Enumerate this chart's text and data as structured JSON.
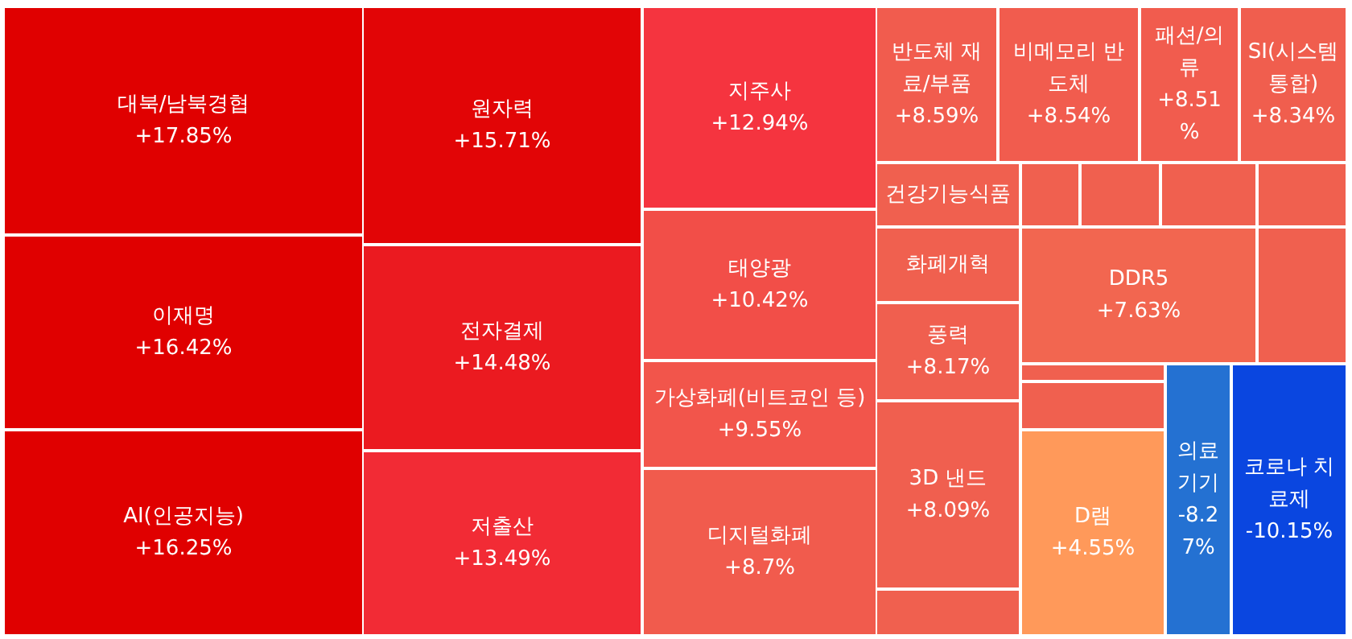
{
  "chart_data": {
    "type": "other",
    "categories": [
      "대북/남북경협",
      "이재명",
      "AI(인공지능)",
      "원자력",
      "전자결제",
      "저출산",
      "지주사",
      "태양광",
      "가상화폐(비트코인 등)",
      "디지털화폐",
      "반도체 재료/부품",
      "비메모리 반도체",
      "패션/의류",
      "SI(시스템통합)",
      "건강기능식품",
      null,
      null,
      null,
      null,
      "화폐개혁",
      "풍력",
      "DDR5",
      null,
      null,
      null,
      "3D 낸드",
      null,
      "D램",
      "의료기기",
      "코로나 치료제"
    ],
    "values": [
      17.85,
      16.42,
      16.25,
      15.71,
      14.48,
      13.49,
      12.94,
      10.42,
      9.55,
      8.7,
      8.59,
      8.54,
      8.51,
      8.34,
      null,
      null,
      null,
      null,
      null,
      null,
      8.17,
      7.63,
      null,
      null,
      null,
      8.09,
      null,
      4.55,
      -8.27,
      -10.15
    ],
    "value_labels": [
      "+17.85%",
      "+16.42%",
      "+16.25%",
      "+15.71%",
      "+14.48%",
      "+13.49%",
      "+12.94%",
      "+10.42%",
      "+9.55%",
      "+8.7%",
      "+8.59%",
      "+8.54%",
      "+8.51%",
      "+8.34%",
      null,
      null,
      null,
      null,
      null,
      null,
      "+8.17%",
      "+7.63%",
      null,
      null,
      null,
      "+8.09%",
      null,
      "+4.55%",
      "-8.27%",
      "-10.15%"
    ]
  }
}
